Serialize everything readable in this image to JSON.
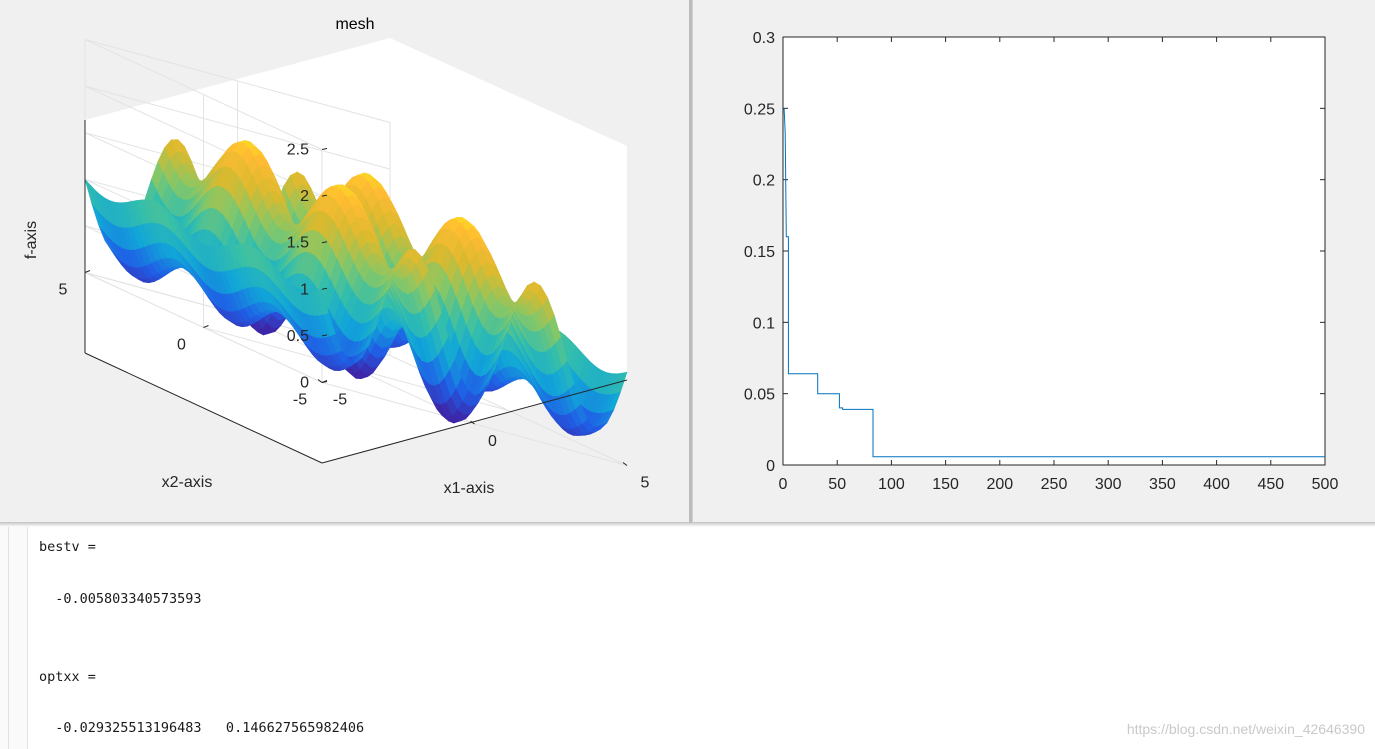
{
  "chart_data": [
    {
      "type": "surface",
      "title": "mesh",
      "xlabel": "x1-axis",
      "ylabel": "x2-axis",
      "zlabel": "f-axis",
      "x_ticks": [
        "-5",
        "0",
        "5"
      ],
      "y_ticks": [
        "-5",
        "0",
        "5"
      ],
      "z_ticks": [
        "0",
        "0.5",
        "1",
        "1.5",
        "2",
        "2.5"
      ],
      "xlim": [
        -5,
        5
      ],
      "ylim": [
        -5,
        5
      ],
      "zlim": [
        0,
        2.5
      ],
      "colormap": [
        "#3e26a8",
        "#1f5fe6",
        "#11a6d8",
        "#35bfaa",
        "#86c767",
        "#d9ba2f",
        "#ffbb33",
        "#f9fb0e"
      ],
      "grid": true
    },
    {
      "type": "line",
      "x_ticks": [
        "0",
        "50",
        "100",
        "150",
        "200",
        "250",
        "300",
        "350",
        "400",
        "450",
        "500"
      ],
      "y_ticks": [
        "0",
        "0.05",
        "0.1",
        "0.15",
        "0.2",
        "0.25",
        "0.3"
      ],
      "xlim": [
        0,
        500
      ],
      "ylim": [
        0,
        0.3
      ],
      "grid": false,
      "color": "#0072bd",
      "series": [
        {
          "x": [
            1,
            2,
            3,
            4,
            5,
            5,
            32,
            32,
            52,
            52,
            55,
            55,
            83,
            83,
            500
          ],
          "y": [
            0.25,
            0.233,
            0.16,
            0.16,
            0.16,
            0.064,
            0.064,
            0.05,
            0.05,
            0.04,
            0.04,
            0.039,
            0.039,
            0.0058,
            0.0058
          ]
        }
      ]
    }
  ],
  "console": {
    "line1": "bestv =",
    "line2": "  -0.005803340573593",
    "line3": "optxx =",
    "line4": "  -0.029325513196483   0.146627565982406"
  },
  "watermark": "https://blog.csdn.net/weixin_42646390"
}
